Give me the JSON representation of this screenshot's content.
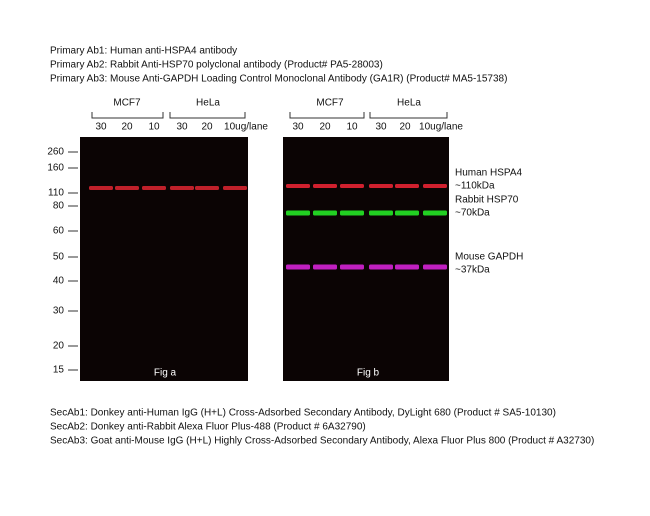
{
  "header": {
    "lines": [
      "Primary Ab1: Human anti-HSPA4 antibody",
      "Primary Ab2: Rabbit Anti-HSP70 polyclonal antibody (Product# PA5-28003)",
      "Primary Ab3: Mouse Anti-GAPDH  Loading Control Monoclonal Antibody (GA1R) (Product# MA5-15738)"
    ]
  },
  "groups": [
    "MCF7",
    "HeLa",
    "MCF7",
    "HeLa"
  ],
  "lanes": [
    "30",
    "20",
    "10",
    "30",
    "20",
    "10ug/lane",
    "30",
    "20",
    "10",
    "30",
    "20",
    "10ug/lane"
  ],
  "markers": [
    260,
    160,
    110,
    80,
    60,
    50,
    40,
    30,
    20,
    15
  ],
  "panels": [
    "Fig a",
    "Fig b"
  ],
  "annotations": [
    "Human HSPA4",
    "~110kDa",
    "Rabbit HSP70",
    "~70kDa",
    "Mouse GAPDH",
    "~37kDa"
  ],
  "footer": {
    "lines": [
      "SecAb1: Donkey anti-Human IgG (H+L) Cross-Adsorbed Secondary Antibody, DyLight 680 (Product # SA5-10130)",
      "SecAb2: Donkey anti-Rabbit Alexa Fluor Plus-488 (Product # 6A32790)",
      "SecAb3: Goat anti-Mouse IgG (H+L) Highly Cross-Adsorbed Secondary Antibody, Alexa Fluor Plus 800 (Product # A32730)"
    ]
  }
}
